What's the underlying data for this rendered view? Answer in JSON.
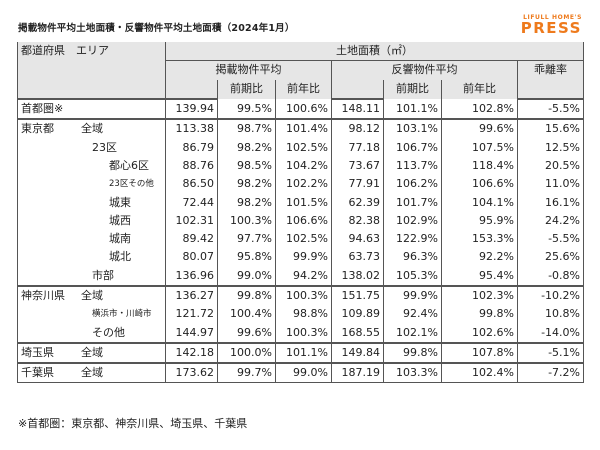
{
  "header": {
    "title": "掲載物件平均土地面積・反響物件平均土地面積（2024年1月）",
    "logo_top": "LIFULL HOME'S",
    "logo_main": "PRESS"
  },
  "columns": {
    "area": "都道府県　エリア",
    "land_area": "土地面積（㎡）",
    "listed": "掲載物件平均",
    "response": "反響物件平均",
    "divergence": "乖離率",
    "mom": "前期比",
    "yoy": "前年比"
  },
  "rows": [
    {
      "name": "首都圏※",
      "sub": "",
      "listed": "139.94",
      "l_mom": "99.5%",
      "l_yoy": "100.6%",
      "resp": "148.11",
      "r_mom": "101.1%",
      "r_yoy": "102.8%",
      "div": "-5.5%"
    },
    {
      "name": "東京都",
      "sub": "全域",
      "listed": "113.38",
      "l_mom": "98.7%",
      "l_yoy": "101.4%",
      "resp": "98.12",
      "r_mom": "103.1%",
      "r_yoy": "99.6%",
      "div": "15.6%"
    },
    {
      "name": "23区",
      "sub": "",
      "listed": "86.79",
      "l_mom": "98.2%",
      "l_yoy": "102.5%",
      "resp": "77.18",
      "r_mom": "106.7%",
      "r_yoy": "107.5%",
      "div": "12.5%"
    },
    {
      "name": "都心6区",
      "sub": "",
      "listed": "88.76",
      "l_mom": "98.5%",
      "l_yoy": "104.2%",
      "resp": "73.67",
      "r_mom": "113.7%",
      "r_yoy": "118.4%",
      "div": "20.5%"
    },
    {
      "name": "23区その他",
      "sub": "",
      "listed": "86.50",
      "l_mom": "98.2%",
      "l_yoy": "102.2%",
      "resp": "77.91",
      "r_mom": "106.2%",
      "r_yoy": "106.6%",
      "div": "11.0%"
    },
    {
      "name": "城東",
      "sub": "",
      "listed": "72.44",
      "l_mom": "98.2%",
      "l_yoy": "101.5%",
      "resp": "62.39",
      "r_mom": "101.7%",
      "r_yoy": "104.1%",
      "div": "16.1%"
    },
    {
      "name": "城西",
      "sub": "",
      "listed": "102.31",
      "l_mom": "100.3%",
      "l_yoy": "106.6%",
      "resp": "82.38",
      "r_mom": "102.9%",
      "r_yoy": "95.9%",
      "div": "24.2%"
    },
    {
      "name": "城南",
      "sub": "",
      "listed": "89.42",
      "l_mom": "97.7%",
      "l_yoy": "102.5%",
      "resp": "94.63",
      "r_mom": "122.9%",
      "r_yoy": "153.3%",
      "div": "-5.5%"
    },
    {
      "name": "城北",
      "sub": "",
      "listed": "80.07",
      "l_mom": "95.8%",
      "l_yoy": "99.9%",
      "resp": "63.73",
      "r_mom": "96.3%",
      "r_yoy": "92.2%",
      "div": "25.6%"
    },
    {
      "name": "市部",
      "sub": "",
      "listed": "136.96",
      "l_mom": "99.0%",
      "l_yoy": "94.2%",
      "resp": "138.02",
      "r_mom": "105.3%",
      "r_yoy": "95.4%",
      "div": "-0.8%"
    },
    {
      "name": "神奈川県",
      "sub": "全域",
      "listed": "136.27",
      "l_mom": "99.8%",
      "l_yoy": "100.3%",
      "resp": "151.75",
      "r_mom": "99.9%",
      "r_yoy": "102.3%",
      "div": "-10.2%"
    },
    {
      "name": "横浜市・川崎市",
      "sub": "",
      "listed": "121.72",
      "l_mom": "100.4%",
      "l_yoy": "98.8%",
      "resp": "109.89",
      "r_mom": "92.4%",
      "r_yoy": "99.8%",
      "div": "10.8%"
    },
    {
      "name": "その他",
      "sub": "",
      "listed": "144.97",
      "l_mom": "99.6%",
      "l_yoy": "100.3%",
      "resp": "168.55",
      "r_mom": "102.1%",
      "r_yoy": "102.6%",
      "div": "-14.0%"
    },
    {
      "name": "埼玉県",
      "sub": "全域",
      "listed": "142.18",
      "l_mom": "100.0%",
      "l_yoy": "101.1%",
      "resp": "149.84",
      "r_mom": "99.8%",
      "r_yoy": "107.8%",
      "div": "-5.1%"
    },
    {
      "name": "千葉県",
      "sub": "全域",
      "listed": "173.62",
      "l_mom": "99.7%",
      "l_yoy": "99.0%",
      "resp": "187.19",
      "r_mom": "103.3%",
      "r_yoy": "102.4%",
      "div": "-7.2%"
    }
  ],
  "footnote": "※首都圏：東京都、神奈川県、埼玉県、千葉県",
  "colors": {
    "header_bg": "#e6e6e6",
    "border": "#555555",
    "logo": "#ee7a1c"
  }
}
